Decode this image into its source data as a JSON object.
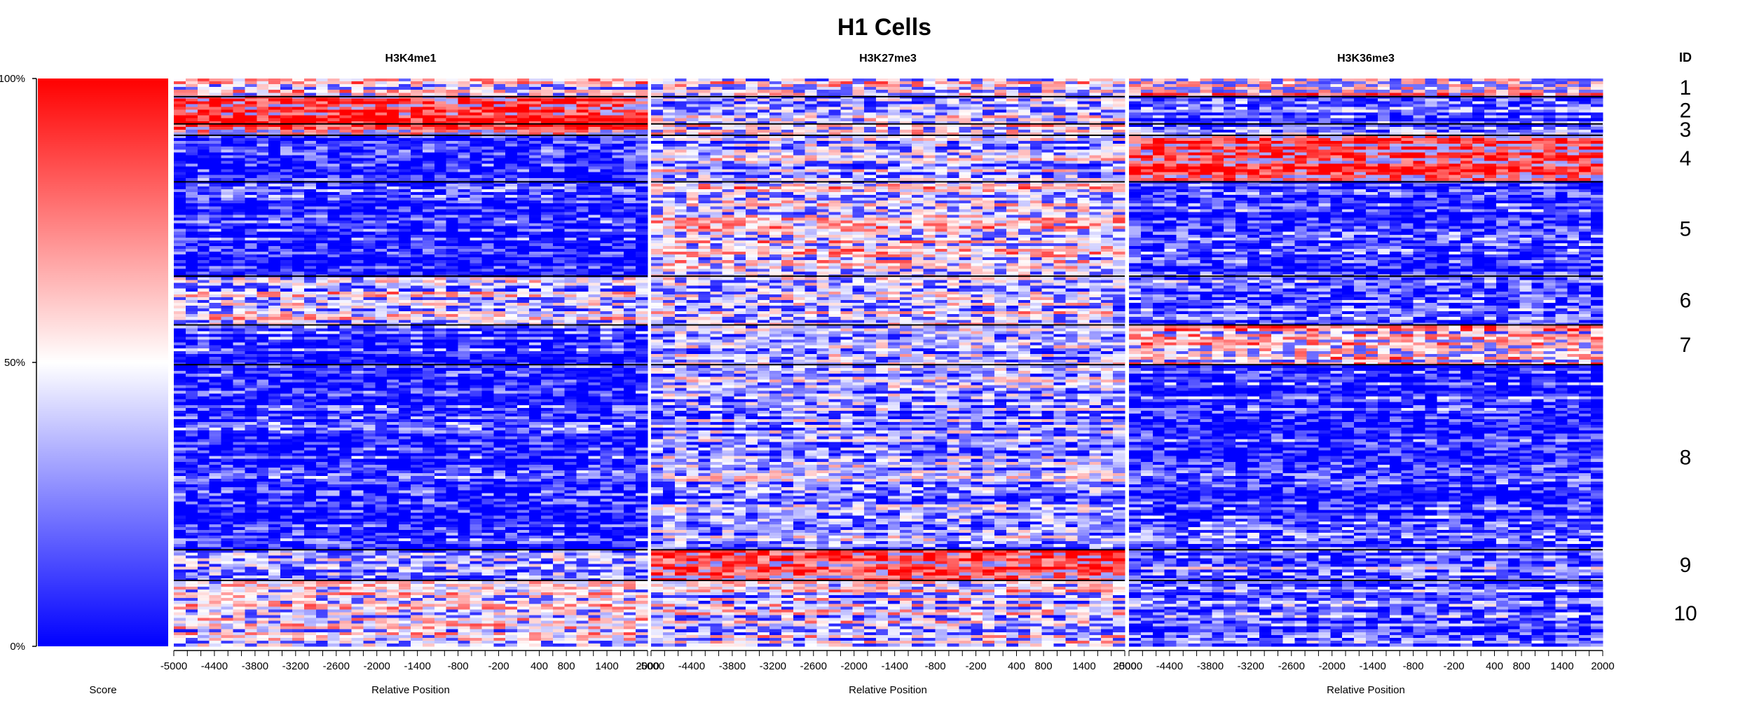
{
  "chart_data": {
    "type": "heatmap",
    "title": "H1 Cells",
    "colorbar": {
      "label": "Score",
      "ticks": [
        "0%",
        "50%",
        "100%"
      ],
      "colors": {
        "low": "#0000ff",
        "mid": "#ffffff",
        "high": "#ff0000"
      }
    },
    "id_header": "ID",
    "xlabel": "Relative Position",
    "x_range": [
      -5000,
      2000
    ],
    "x_ticks": [
      "-5000",
      "-4400",
      "-3800",
      "-3200",
      "-2600",
      "-2000",
      "-1400",
      "-800",
      "-200",
      "400",
      "800",
      "1400",
      "2000"
    ],
    "clusters": [
      {
        "id": "1",
        "fraction": 0.032
      },
      {
        "id": "2",
        "fraction": 0.048
      },
      {
        "id": "3",
        "fraction": 0.02
      },
      {
        "id": "4",
        "fraction": 0.082
      },
      {
        "id": "5",
        "fraction": 0.166
      },
      {
        "id": "6",
        "fraction": 0.086
      },
      {
        "id": "7",
        "fraction": 0.07
      },
      {
        "id": "8",
        "fraction": 0.326
      },
      {
        "id": "9",
        "fraction": 0.054
      },
      {
        "id": "10",
        "fraction": 0.116
      }
    ],
    "panels": [
      {
        "name": "H3K4me1",
        "cluster_signal": [
          0.55,
          0.85,
          0.8,
          0.05,
          0.05,
          0.45,
          0.08,
          0.08,
          0.4,
          0.45
        ]
      },
      {
        "name": "H3K27me3",
        "cluster_signal": [
          0.55,
          0.4,
          0.55,
          0.4,
          0.5,
          0.45,
          0.3,
          0.3,
          0.8,
          0.45
        ]
      },
      {
        "name": "H3K36me3",
        "cluster_signal": [
          0.65,
          0.15,
          0.25,
          0.85,
          0.1,
          0.2,
          0.6,
          0.1,
          0.25,
          0.2
        ]
      }
    ]
  }
}
